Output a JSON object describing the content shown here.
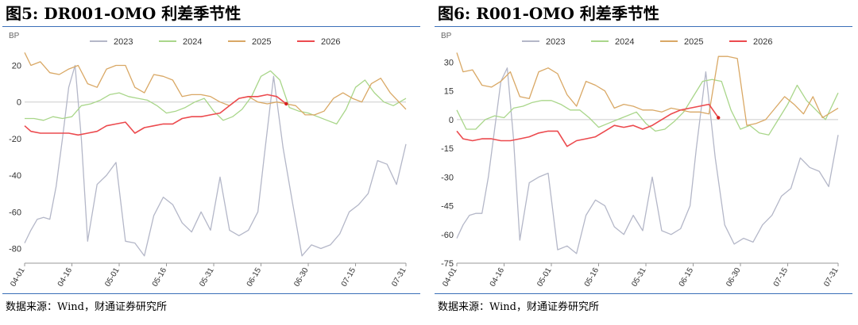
{
  "source_label": "数据来源：Wind，财通证券研究所",
  "colors": {
    "2023": "#b4b7c8",
    "2024": "#a9d68a",
    "2025": "#d9a865",
    "2026": "#ec4a4e",
    "rule": "#3a6fb8",
    "zero": "#cccccc"
  },
  "chart_data": [
    {
      "type": "line",
      "title": "图5: DR001-OMO 利差季节性",
      "ylabel": "BP",
      "ylim": [
        -88,
        28
      ],
      "yticks": [
        20,
        0,
        -20,
        -40,
        -60,
        -80
      ],
      "xlim": [
        "04-01",
        "07-31"
      ],
      "xticks": [
        "04-01",
        "04-16",
        "05-01",
        "05-16",
        "05-31",
        "06-15",
        "06-30",
        "07-15",
        "07-31"
      ],
      "legend_position": "top",
      "series": [
        {
          "name": "2023",
          "x": [
            "04-01",
            "04-03",
            "04-05",
            "04-07",
            "04-09",
            "04-11",
            "04-13",
            "04-15",
            "04-17",
            "04-19",
            "04-21",
            "04-24",
            "04-27",
            "04-30",
            "05-03",
            "05-06",
            "05-09",
            "05-12",
            "05-15",
            "05-18",
            "05-21",
            "05-24",
            "05-27",
            "05-30",
            "06-02",
            "06-05",
            "06-08",
            "06-11",
            "06-14",
            "06-16",
            "06-19",
            "06-22",
            "06-25",
            "06-28",
            "07-01",
            "07-04",
            "07-07",
            "07-10",
            "07-13",
            "07-16",
            "07-19",
            "07-22",
            "07-25",
            "07-28",
            "07-31"
          ],
          "y": [
            -77,
            -70,
            -64,
            -63,
            -64,
            -46,
            -20,
            8,
            20,
            -20,
            -76,
            -45,
            -40,
            -33,
            -76,
            -77,
            -84,
            -62,
            -52,
            -56,
            -66,
            -71,
            -60,
            -70,
            -41,
            -70,
            -73,
            -70,
            -60,
            -30,
            14,
            -25,
            -55,
            -84,
            -78,
            -80,
            -78,
            -72,
            -60,
            -56,
            -50,
            -32,
            -34,
            -45,
            -23
          ]
        },
        {
          "name": "2024",
          "x": [
            "04-01",
            "04-04",
            "04-07",
            "04-10",
            "04-13",
            "04-16",
            "04-19",
            "04-22",
            "04-25",
            "04-28",
            "05-01",
            "05-04",
            "05-07",
            "05-10",
            "05-13",
            "05-16",
            "05-19",
            "05-22",
            "05-25",
            "05-28",
            "05-31",
            "06-03",
            "06-06",
            "06-09",
            "06-12",
            "06-15",
            "06-18",
            "06-21",
            "06-24",
            "06-27",
            "06-30",
            "07-03",
            "07-06",
            "07-09",
            "07-12",
            "07-15",
            "07-18",
            "07-21",
            "07-24",
            "07-27",
            "07-31"
          ],
          "y": [
            -9,
            -9,
            -10,
            -8,
            -9,
            -8,
            -2,
            -1,
            1,
            4,
            5,
            3,
            2,
            1,
            -2,
            -6,
            -5,
            -3,
            0,
            2,
            -5,
            -10,
            -8,
            -4,
            3,
            14,
            17,
            12,
            -3,
            -5,
            -6,
            -8,
            -10,
            -12,
            -4,
            8,
            12,
            5,
            0,
            -2,
            2
          ]
        },
        {
          "name": "2025",
          "x": [
            "04-01",
            "04-03",
            "04-06",
            "04-09",
            "04-12",
            "04-15",
            "04-18",
            "04-21",
            "04-24",
            "04-27",
            "04-30",
            "05-03",
            "05-06",
            "05-09",
            "05-12",
            "05-15",
            "05-18",
            "05-21",
            "05-24",
            "05-27",
            "05-30",
            "06-02",
            "06-05",
            "06-08",
            "06-11",
            "06-14",
            "06-17",
            "06-20",
            "06-23",
            "06-26",
            "06-29",
            "07-02",
            "07-05",
            "07-08",
            "07-11",
            "07-14",
            "07-17",
            "07-20",
            "07-23",
            "07-26",
            "07-31"
          ],
          "y": [
            27,
            20,
            22,
            16,
            15,
            18,
            20,
            10,
            8,
            18,
            20,
            20,
            8,
            5,
            15,
            14,
            12,
            3,
            4,
            4,
            3,
            0,
            -2,
            2,
            3,
            0,
            -1,
            0,
            -1,
            -2,
            -7,
            -7,
            -5,
            2,
            5,
            2,
            0,
            10,
            13,
            5,
            -4
          ]
        },
        {
          "name": "2026",
          "x": [
            "04-01",
            "04-03",
            "04-06",
            "04-09",
            "04-12",
            "04-15",
            "04-18",
            "04-21",
            "04-24",
            "04-27",
            "04-30",
            "05-03",
            "05-06",
            "05-09",
            "05-12",
            "05-15",
            "05-18",
            "05-21",
            "05-24",
            "05-27",
            "05-30",
            "06-02",
            "06-05",
            "06-08",
            "06-11",
            "06-14",
            "06-17",
            "06-20",
            "06-23"
          ],
          "y": [
            -13,
            -16,
            -17,
            -17,
            -17,
            -17,
            -18,
            -17,
            -16,
            -13,
            -12,
            -11,
            -17,
            -14,
            -13,
            -12,
            -12,
            -9,
            -8,
            -8,
            -7,
            -6,
            -2,
            2,
            3,
            3,
            4,
            3,
            -1
          ]
        }
      ]
    },
    {
      "type": "line",
      "title": "图6: R001-OMO 利差季节性",
      "ylabel": "BP",
      "ylim": [
        -75,
        36
      ],
      "yticks": [
        30,
        15,
        0,
        -15,
        -30,
        -45,
        -60,
        -75
      ],
      "xlim": [
        "04-01",
        "07-31"
      ],
      "xticks": [
        "04-01",
        "04-16",
        "05-01",
        "05-16",
        "05-31",
        "06-15",
        "06-30",
        "07-15",
        "07-31"
      ],
      "legend_position": "top",
      "series": [
        {
          "name": "2023",
          "x": [
            "04-01",
            "04-03",
            "04-05",
            "04-07",
            "04-09",
            "04-11",
            "04-13",
            "04-15",
            "04-17",
            "04-19",
            "04-21",
            "04-24",
            "04-27",
            "04-30",
            "05-03",
            "05-06",
            "05-09",
            "05-12",
            "05-15",
            "05-18",
            "05-21",
            "05-24",
            "05-27",
            "05-30",
            "06-02",
            "06-05",
            "06-08",
            "06-11",
            "06-14",
            "06-16",
            "06-19",
            "06-22",
            "06-25",
            "06-28",
            "07-01",
            "07-04",
            "07-07",
            "07-10",
            "07-13",
            "07-16",
            "07-19",
            "07-22",
            "07-25",
            "07-28",
            "07-31"
          ],
          "y": [
            -62,
            -55,
            -50,
            -49,
            -49,
            -30,
            -5,
            20,
            27,
            -10,
            -63,
            -33,
            -30,
            -28,
            -68,
            -66,
            -70,
            -50,
            -42,
            -45,
            -56,
            -60,
            -50,
            -58,
            -30,
            -58,
            -60,
            -57,
            -45,
            -15,
            25,
            -20,
            -55,
            -65,
            -62,
            -64,
            -55,
            -50,
            -40,
            -36,
            -20,
            -25,
            -27,
            -35,
            -8
          ]
        },
        {
          "name": "2024",
          "x": [
            "04-01",
            "04-04",
            "04-07",
            "04-10",
            "04-13",
            "04-16",
            "04-19",
            "04-22",
            "04-25",
            "04-28",
            "05-01",
            "05-04",
            "05-07",
            "05-10",
            "05-13",
            "05-16",
            "05-19",
            "05-22",
            "05-25",
            "05-28",
            "05-31",
            "06-03",
            "06-06",
            "06-09",
            "06-12",
            "06-15",
            "06-18",
            "06-21",
            "06-24",
            "06-27",
            "06-30",
            "07-03",
            "07-06",
            "07-09",
            "07-12",
            "07-15",
            "07-18",
            "07-21",
            "07-24",
            "07-27",
            "07-31"
          ],
          "y": [
            5,
            -5,
            -5,
            0,
            2,
            1,
            6,
            7,
            9,
            10,
            10,
            8,
            5,
            5,
            1,
            -4,
            -2,
            0,
            2,
            4,
            -2,
            -6,
            -5,
            -1,
            4,
            12,
            20,
            21,
            20,
            5,
            -5,
            -3,
            -7,
            -8,
            0,
            8,
            18,
            10,
            5,
            0,
            14
          ]
        },
        {
          "name": "2025",
          "x": [
            "04-01",
            "04-03",
            "04-06",
            "04-09",
            "04-12",
            "04-15",
            "04-18",
            "04-21",
            "04-24",
            "04-27",
            "04-30",
            "05-03",
            "05-06",
            "05-09",
            "05-12",
            "05-15",
            "05-18",
            "05-21",
            "05-24",
            "05-27",
            "05-30",
            "06-02",
            "06-05",
            "06-08",
            "06-11",
            "06-14",
            "06-17",
            "06-20",
            "06-23",
            "06-26",
            "06-29",
            "07-02",
            "07-05",
            "07-08",
            "07-11",
            "07-14",
            "07-17",
            "07-20",
            "07-23",
            "07-26",
            "07-31"
          ],
          "y": [
            35,
            25,
            26,
            18,
            17,
            20,
            25,
            12,
            11,
            25,
            27,
            24,
            13,
            7,
            20,
            18,
            15,
            6,
            8,
            7,
            5,
            5,
            4,
            6,
            5,
            4,
            4,
            3,
            33,
            33,
            32,
            -3,
            -2,
            0,
            6,
            12,
            8,
            3,
            12,
            1,
            6
          ]
        },
        {
          "name": "2026",
          "x": [
            "04-01",
            "04-03",
            "04-06",
            "04-09",
            "04-12",
            "04-15",
            "04-18",
            "04-21",
            "04-24",
            "04-27",
            "04-30",
            "05-03",
            "05-06",
            "05-09",
            "05-12",
            "05-15",
            "05-18",
            "05-21",
            "05-24",
            "05-27",
            "05-30",
            "06-02",
            "06-05",
            "06-08",
            "06-11",
            "06-14",
            "06-17",
            "06-20",
            "06-23"
          ],
          "y": [
            -6,
            -10,
            -11,
            -10,
            -10,
            -11,
            -11,
            -10,
            -9,
            -7,
            -6,
            -6,
            -14,
            -11,
            -10,
            -9,
            -6,
            -3,
            -4,
            -3,
            -5,
            -3,
            0,
            3,
            5,
            6,
            7,
            8,
            1
          ]
        }
      ]
    }
  ]
}
